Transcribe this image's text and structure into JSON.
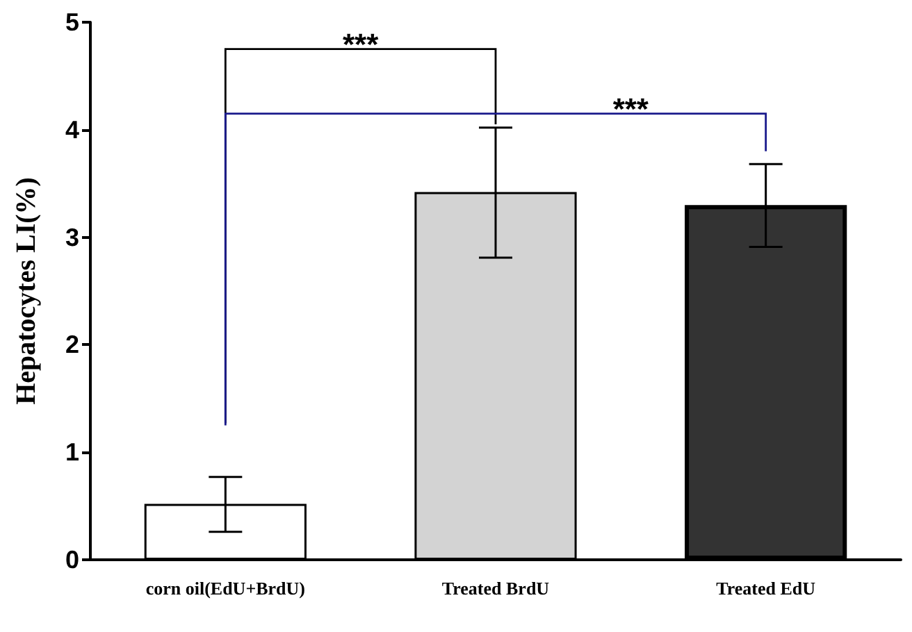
{
  "chart_data": {
    "type": "bar",
    "ylabel": "Hepatocytes LI(%)",
    "categories": [
      "corn oil(EdU+BrdU)",
      "Treated BrdU",
      "Treated EdU"
    ],
    "values": [
      0.52,
      3.42,
      3.3
    ],
    "colors": [
      "#ffffff",
      "#d3d3d3",
      "#333333"
    ],
    "errors": [
      [
        0.26,
        0.77
      ],
      [
        2.81,
        4.02
      ],
      [
        2.91,
        3.68
      ]
    ],
    "ylim": [
      0,
      5
    ],
    "yticks": [
      0,
      1,
      2,
      3,
      4,
      5
    ],
    "annotations": [
      "***",
      "***"
    ],
    "grid": false
  }
}
